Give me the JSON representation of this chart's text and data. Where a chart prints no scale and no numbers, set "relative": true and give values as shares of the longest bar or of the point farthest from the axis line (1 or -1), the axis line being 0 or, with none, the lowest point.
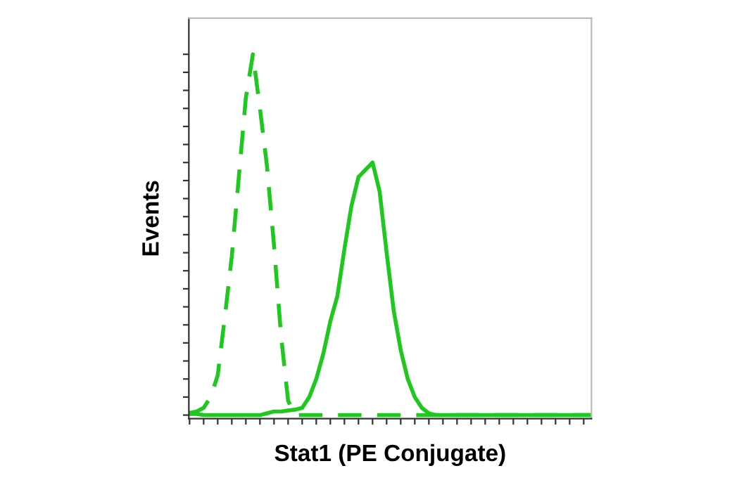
{
  "chart_data": {
    "type": "line",
    "relative": true,
    "xlabel": "Stat1 (PE Conjugate)",
    "ylabel": "Events",
    "tick_labels": false,
    "grid": false,
    "legend": false,
    "categories": [
      null,
      null,
      null,
      null,
      null,
      null,
      null,
      null,
      null,
      null,
      null,
      null,
      null,
      null,
      null,
      null,
      null,
      null,
      null,
      null,
      null,
      null,
      null,
      null,
      null,
      null,
      null,
      null,
      null,
      null,
      null,
      null,
      null,
      null,
      null,
      null,
      null,
      null,
      null,
      null,
      null,
      null,
      null,
      null,
      null,
      null,
      null,
      null,
      null,
      null,
      null,
      null,
      null,
      null,
      null,
      null,
      null,
      null
    ],
    "series": [
      {
        "color": "#1ec81e",
        "line_style": "dashed",
        "values": [
          0.006,
          0.01,
          0.02,
          0.05,
          0.11,
          0.27,
          0.44,
          0.66,
          0.88,
          1.0,
          0.85,
          0.69,
          0.47,
          0.22,
          0.04,
          0,
          0,
          0,
          0,
          0,
          0,
          0,
          0,
          0,
          0,
          0,
          0,
          0,
          0,
          0,
          0,
          0,
          0,
          0,
          0,
          0,
          0,
          0,
          0,
          0,
          0,
          0,
          0,
          0,
          0,
          0,
          0,
          0,
          0,
          0,
          0,
          0,
          0,
          0,
          0,
          0,
          0,
          0
        ]
      },
      {
        "color": "#1ec81e",
        "line_style": "solid",
        "values": [
          0.003,
          0.003,
          0,
          0,
          0,
          0,
          0,
          0,
          0,
          0,
          0,
          0.005,
          0.01,
          0.01,
          0.013,
          0.015,
          0.02,
          0.05,
          0.1,
          0.17,
          0.26,
          0.33,
          0.46,
          0.58,
          0.66,
          0.68,
          0.7,
          0.62,
          0.45,
          0.29,
          0.18,
          0.1,
          0.05,
          0.02,
          0.005,
          0,
          0,
          0,
          0,
          0,
          0,
          0,
          0,
          0,
          0,
          0,
          0,
          0,
          0,
          0,
          0,
          0,
          0,
          0,
          0,
          0,
          0,
          0
        ]
      }
    ]
  }
}
